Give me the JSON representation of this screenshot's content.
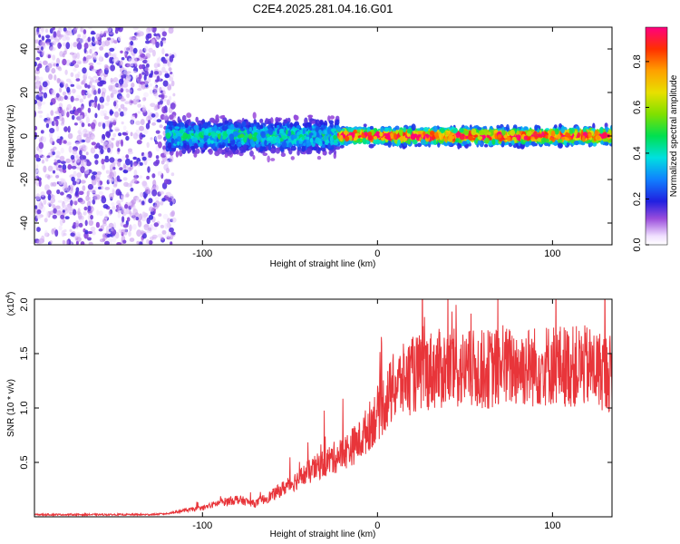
{
  "title": "C2E4.2025.281.04.16.G01",
  "colors": {
    "background": "#ffffff",
    "snr_line": "#e8353a",
    "scatter_noise": "#8a4fe0"
  },
  "chart_data": [
    {
      "type": "heatmap",
      "xlabel": "Height of straight line (km)",
      "ylabel": "Frequency (Hz)",
      "xlim": [
        -196,
        134
      ],
      "ylim": [
        -50,
        50
      ],
      "x_ticks": [
        -100,
        0,
        100
      ],
      "y_ticks": [
        -40,
        -20,
        0,
        20,
        40
      ],
      "colorbar": {
        "label": "Normalized spectral amplitude",
        "range": [
          0.0,
          0.95
        ],
        "ticks": [
          "0.0",
          "0.2",
          "0.4",
          "0.6",
          "0.8"
        ],
        "tick_values": [
          0.0,
          0.2,
          0.4,
          0.6,
          0.8
        ]
      },
      "regions": [
        {
          "x_range": [
            -196,
            -116
          ],
          "description": "broadband noise",
          "y_range": [
            -50,
            50
          ],
          "amplitude": 0.05
        },
        {
          "x_range": [
            -120,
            -22
          ],
          "description": "signal band",
          "center_freq": 0,
          "spread": 8,
          "amplitude": 0.3
        },
        {
          "x_range": [
            -22,
            134
          ],
          "description": "signal band",
          "center_freq": 0,
          "spread": 4,
          "amplitude": 0.85
        }
      ]
    },
    {
      "type": "line",
      "xlabel": "Height of straight line (km)",
      "ylabel": "SNR (10 * v/v)",
      "y_multiplier_label": "(x10",
      "y_multiplier_exp": "4",
      "y_multiplier_close": ")",
      "xlim": [
        -196,
        134
      ],
      "ylim": [
        0,
        2.0
      ],
      "x_ticks": [
        -100,
        0,
        100
      ],
      "y_ticks": [
        0.5,
        1.0,
        1.5,
        2.0
      ],
      "y_tick_labels": [
        "0.5",
        "1.0",
        "1.5",
        "2.0"
      ],
      "series": [
        {
          "x": [
            -196,
            -160,
            -130,
            -120,
            -110,
            -100,
            -90,
            -80,
            -70,
            -60,
            -50,
            -40,
            -30,
            -20,
            -10,
            0,
            10,
            20,
            30,
            40,
            50,
            60,
            70,
            80,
            90,
            100,
            110,
            120,
            134
          ],
          "y": [
            0.02,
            0.02,
            0.02,
            0.03,
            0.06,
            0.08,
            0.13,
            0.16,
            0.12,
            0.2,
            0.3,
            0.4,
            0.5,
            0.58,
            0.7,
            0.95,
            1.2,
            1.3,
            1.35,
            1.36,
            1.35,
            1.35,
            1.37,
            1.38,
            1.38,
            1.4,
            1.38,
            1.38,
            1.32
          ]
        }
      ]
    }
  ]
}
